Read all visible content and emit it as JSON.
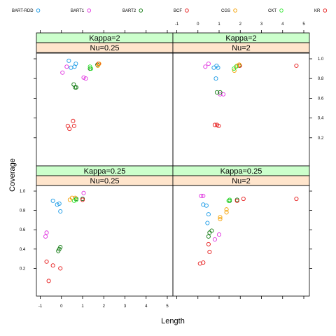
{
  "chart_data": {
    "type": "scatter",
    "xlabel": "Length",
    "ylabel": "Coverage",
    "xlim": [
      -1,
      5
    ],
    "ylim": [
      0,
      1
    ],
    "x_ticks": [
      -1,
      0,
      1,
      2,
      3,
      4,
      5
    ],
    "y_ticks": [
      0.2,
      0.4,
      0.6,
      0.8,
      1.0
    ],
    "legend_position": "top",
    "series_names": [
      "BART-RDD",
      "BART1",
      "BART2",
      "BCF",
      "CGS",
      "CKT",
      "KR"
    ],
    "series_colors": [
      "#1a9ae6",
      "#e033e0",
      "#127a12",
      "#e61a1a",
      "#f5a000",
      "#33e633",
      "#e61a1a"
    ],
    "panels": [
      {
        "id": "kappa2-nu025",
        "strip_top": "Kappa=2",
        "strip_bottom": "Nu=0.25",
        "series": [
          {
            "name": "BART-RDD",
            "points": [
              [
                0.35,
                0.98
              ],
              [
                0.45,
                0.91
              ],
              [
                0.62,
                0.92
              ],
              [
                0.68,
                0.95
              ]
            ]
          },
          {
            "name": "BART1",
            "points": [
              [
                0.05,
                0.86
              ],
              [
                0.25,
                0.92
              ],
              [
                1.05,
                0.81
              ],
              [
                1.15,
                0.8
              ]
            ]
          },
          {
            "name": "BART2",
            "points": [
              [
                0.58,
                0.74
              ],
              [
                0.65,
                0.71
              ],
              [
                0.7,
                0.71
              ],
              [
                1.35,
                0.9
              ],
              [
                1.7,
                0.94
              ]
            ]
          },
          {
            "name": "BCF",
            "points": [
              [
                0.3,
                0.32
              ],
              [
                0.38,
                0.29
              ],
              [
                0.55,
                0.37
              ],
              [
                0.6,
                0.32
              ],
              [
                1.75,
                0.95
              ]
            ]
          },
          {
            "name": "CGS",
            "points": [
              [
                1.72,
                0.93
              ],
              [
                1.78,
                0.95
              ]
            ]
          },
          {
            "name": "CKT",
            "points": [
              [
                1.35,
                0.92
              ],
              [
                1.4,
                0.9
              ]
            ]
          }
        ]
      },
      {
        "id": "kappa2-nu2",
        "strip_top": "Kappa=2",
        "strip_bottom": "Nu=2",
        "series": [
          {
            "name": "BART-RDD",
            "points": [
              [
                0.75,
                0.91
              ],
              [
                0.85,
                0.8
              ],
              [
                0.88,
                0.93
              ],
              [
                0.95,
                0.91
              ]
            ]
          },
          {
            "name": "BART1",
            "points": [
              [
                0.35,
                0.92
              ],
              [
                0.5,
                0.95
              ],
              [
                1.05,
                0.64
              ],
              [
                1.2,
                0.64
              ]
            ]
          },
          {
            "name": "BART2",
            "points": [
              [
                0.9,
                0.66
              ],
              [
                1.05,
                0.66
              ],
              [
                1.95,
                0.93
              ]
            ]
          },
          {
            "name": "BCF",
            "points": [
              [
                0.8,
                0.33
              ],
              [
                0.9,
                0.33
              ],
              [
                0.98,
                0.32
              ],
              [
                1.98,
                0.93
              ],
              [
                4.65,
                0.93
              ]
            ]
          },
          {
            "name": "CGS",
            "points": [
              [
                1.72,
                0.88
              ],
              [
                1.85,
                0.93
              ],
              [
                1.95,
                0.94
              ]
            ]
          },
          {
            "name": "CKT",
            "points": [
              [
                1.7,
                0.9
              ],
              [
                1.8,
                0.92
              ]
            ]
          }
        ]
      },
      {
        "id": "kappa025-nu025",
        "strip_top": "Kappa=0.25",
        "strip_bottom": "Nu=0.25",
        "series": [
          {
            "name": "BART-RDD",
            "points": [
              [
                -0.4,
                0.9
              ],
              [
                -0.2,
                0.86
              ],
              [
                -0.1,
                0.87
              ],
              [
                -0.05,
                0.79
              ]
            ]
          },
          {
            "name": "BART1",
            "points": [
              [
                -0.75,
                0.53
              ],
              [
                -0.7,
                0.57
              ],
              [
                1.0,
                0.92
              ],
              [
                1.05,
                0.98
              ]
            ]
          },
          {
            "name": "BART2",
            "points": [
              [
                -0.15,
                0.38
              ],
              [
                -0.1,
                0.4
              ],
              [
                -0.05,
                0.42
              ],
              [
                0.7,
                0.92
              ],
              [
                1.0,
                0.92
              ]
            ]
          },
          {
            "name": "BCF",
            "points": [
              [
                -0.7,
                0.27
              ],
              [
                -0.6,
                0.07
              ],
              [
                -0.4,
                0.23
              ],
              [
                -0.05,
                0.2
              ],
              [
                1.0,
                0.91
              ]
            ]
          },
          {
            "name": "CGS",
            "points": [
              [
                0.4,
                0.91
              ],
              [
                0.5,
                0.93
              ],
              [
                0.65,
                0.93
              ]
            ]
          },
          {
            "name": "CKT",
            "points": [
              [
                0.6,
                0.9
              ],
              [
                0.7,
                0.91
              ]
            ]
          }
        ]
      },
      {
        "id": "kappa025-nu2",
        "strip_top": "Kappa=0.25",
        "strip_bottom": "Nu=2",
        "series": [
          {
            "name": "BART-RDD",
            "points": [
              [
                0.25,
                0.86
              ],
              [
                0.4,
                0.85
              ],
              [
                0.45,
                0.67
              ],
              [
                0.5,
                0.76
              ]
            ]
          },
          {
            "name": "BART1",
            "points": [
              [
                0.15,
                0.95
              ],
              [
                0.25,
                0.95
              ],
              [
                0.8,
                0.5
              ],
              [
                1.0,
                0.55
              ]
            ]
          },
          {
            "name": "BART2",
            "points": [
              [
                0.5,
                0.53
              ],
              [
                0.55,
                0.57
              ],
              [
                0.65,
                0.59
              ],
              [
                1.5,
                0.9
              ],
              [
                1.85,
                0.91
              ]
            ]
          },
          {
            "name": "BCF",
            "points": [
              [
                0.1,
                0.25
              ],
              [
                0.25,
                0.26
              ],
              [
                0.5,
                0.45
              ],
              [
                0.55,
                0.37
              ],
              [
                1.85,
                0.9
              ],
              [
                2.15,
                0.92
              ],
              [
                4.65,
                0.92
              ]
            ]
          },
          {
            "name": "CGS",
            "points": [
              [
                1.05,
                0.73
              ],
              [
                1.05,
                0.71
              ],
              [
                1.35,
                0.81
              ],
              [
                1.35,
                0.78
              ]
            ]
          },
          {
            "name": "CKT",
            "points": [
              [
                1.45,
                0.9
              ],
              [
                1.5,
                0.91
              ]
            ]
          }
        ]
      }
    ]
  }
}
